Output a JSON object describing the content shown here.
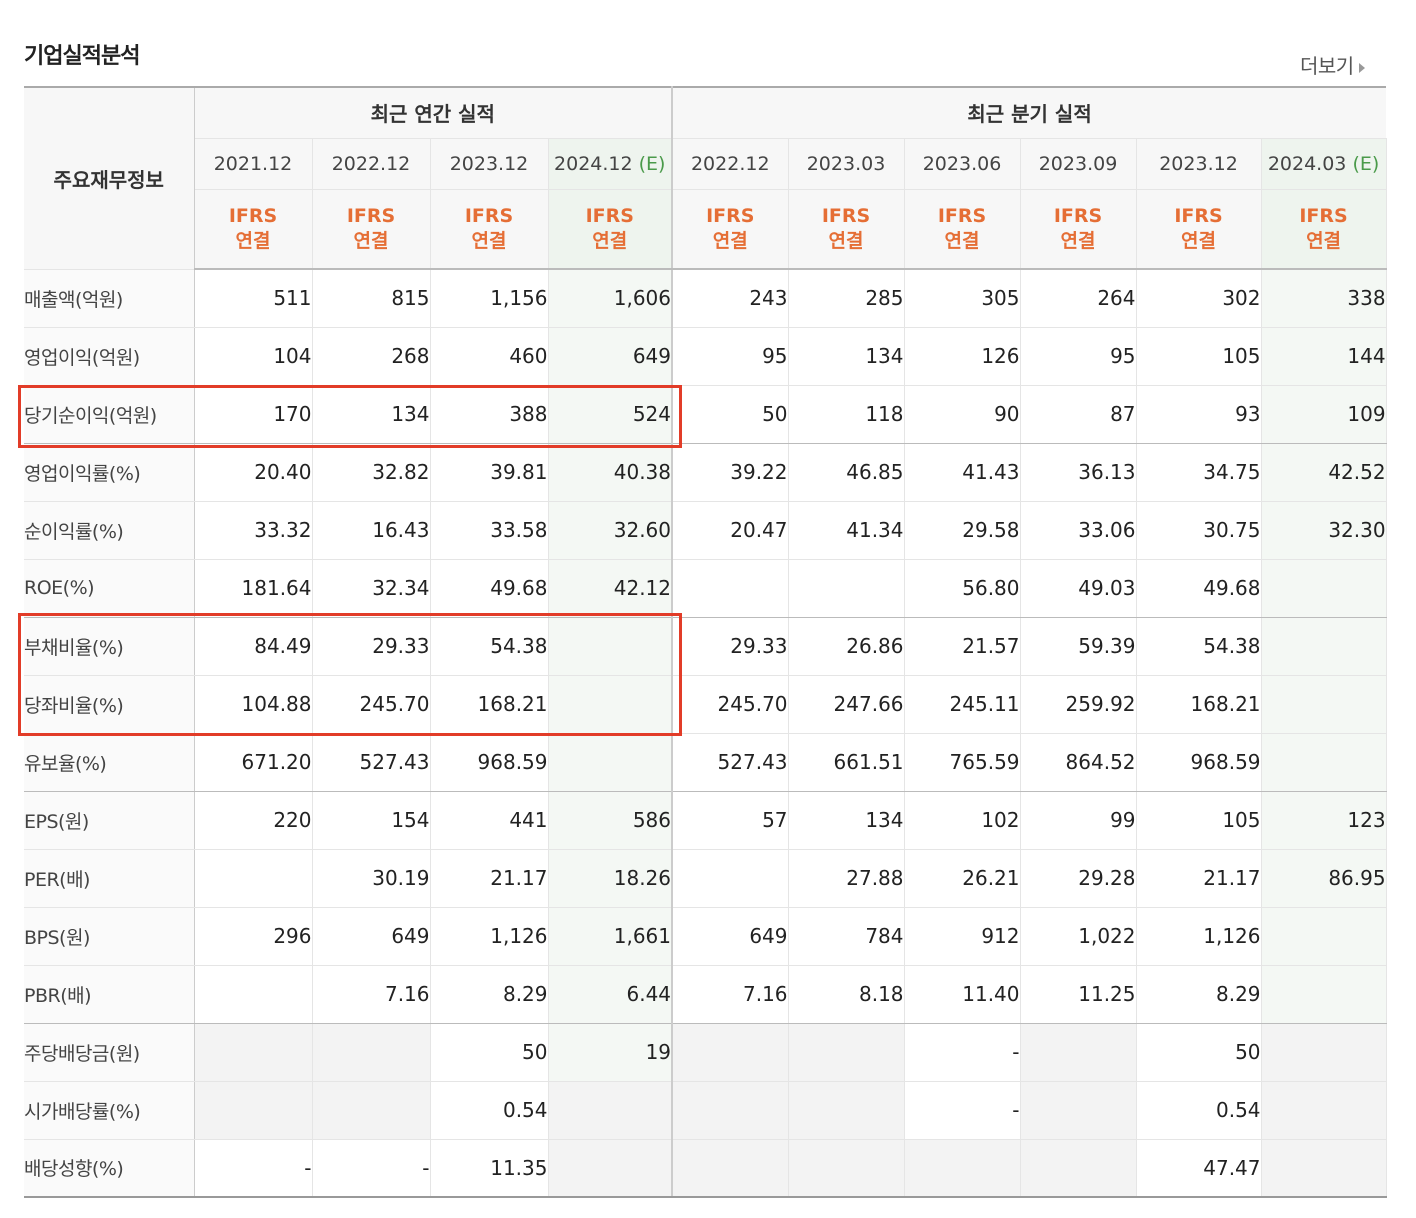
{
  "page": {
    "title": "기업실적분석",
    "more_label": "더보기"
  },
  "table": {
    "corner_label": "주요재무정보",
    "annual_header": "최근 연간 실적",
    "quarter_header": "최근 분기 실적",
    "estimate_mark": "(E)",
    "annual_periods": [
      {
        "label": "2021.12",
        "std1": "IFRS",
        "std2": "연결"
      },
      {
        "label": "2022.12",
        "std1": "IFRS",
        "std2": "연결"
      },
      {
        "label": "2023.12",
        "std1": "IFRS",
        "std2": "연결"
      },
      {
        "label": "2024.12",
        "std1": "IFRS",
        "std2": "연결"
      }
    ],
    "quarter_periods": [
      {
        "label": "2022.12",
        "std1": "IFRS",
        "std2": "연결"
      },
      {
        "label": "2023.03",
        "std1": "IFRS",
        "std2": "연결"
      },
      {
        "label": "2023.06",
        "std1": "IFRS",
        "std2": "연결"
      },
      {
        "label": "2023.09",
        "std1": "IFRS",
        "std2": "연결"
      },
      {
        "label": "2023.12",
        "std1": "IFRS",
        "std2": "연결"
      },
      {
        "label": "2024.03",
        "std1": "IFRS",
        "std2": "연결"
      }
    ],
    "rows": [
      {
        "label": "매출액(억원)",
        "values": [
          "511",
          "815",
          "1,156",
          "1,606",
          "243",
          "285",
          "305",
          "264",
          "302",
          "338"
        ]
      },
      {
        "label": "영업이익(억원)",
        "values": [
          "104",
          "268",
          "460",
          "649",
          "95",
          "134",
          "126",
          "95",
          "105",
          "144"
        ]
      },
      {
        "label": "당기순이익(억원)",
        "values": [
          "170",
          "134",
          "388",
          "524",
          "50",
          "118",
          "90",
          "87",
          "93",
          "109"
        ]
      },
      {
        "label": "영업이익률(%)",
        "values": [
          "20.40",
          "32.82",
          "39.81",
          "40.38",
          "39.22",
          "46.85",
          "41.43",
          "36.13",
          "34.75",
          "42.52"
        ]
      },
      {
        "label": "순이익률(%)",
        "values": [
          "33.32",
          "16.43",
          "33.58",
          "32.60",
          "20.47",
          "41.34",
          "29.58",
          "33.06",
          "30.75",
          "32.30"
        ]
      },
      {
        "label": "ROE(%)",
        "values": [
          "181.64",
          "32.34",
          "49.68",
          "42.12",
          "",
          "",
          "56.80",
          "49.03",
          "49.68",
          ""
        ]
      },
      {
        "label": "부채비율(%)",
        "values": [
          "84.49",
          "29.33",
          "54.38",
          "",
          "29.33",
          "26.86",
          "21.57",
          "59.39",
          "54.38",
          ""
        ]
      },
      {
        "label": "당좌비율(%)",
        "values": [
          "104.88",
          "245.70",
          "168.21",
          "",
          "245.70",
          "247.66",
          "245.11",
          "259.92",
          "168.21",
          ""
        ]
      },
      {
        "label": "유보율(%)",
        "values": [
          "671.20",
          "527.43",
          "968.59",
          "",
          "527.43",
          "661.51",
          "765.59",
          "864.52",
          "968.59",
          ""
        ]
      },
      {
        "label": "EPS(원)",
        "values": [
          "220",
          "154",
          "441",
          "586",
          "57",
          "134",
          "102",
          "99",
          "105",
          "123"
        ]
      },
      {
        "label": "PER(배)",
        "values": [
          "",
          "30.19",
          "21.17",
          "18.26",
          "",
          "27.88",
          "26.21",
          "29.28",
          "21.17",
          "86.95"
        ]
      },
      {
        "label": "BPS(원)",
        "values": [
          "296",
          "649",
          "1,126",
          "1,661",
          "649",
          "784",
          "912",
          "1,022",
          "1,126",
          ""
        ]
      },
      {
        "label": "PBR(배)",
        "values": [
          "",
          "7.16",
          "8.29",
          "6.44",
          "7.16",
          "8.18",
          "11.40",
          "11.25",
          "8.29",
          ""
        ]
      },
      {
        "label": "주당배당금(원)",
        "values": [
          "",
          "",
          "50",
          "19",
          "",
          "",
          "-",
          "",
          "50",
          ""
        ]
      },
      {
        "label": "시가배당률(%)",
        "values": [
          "",
          "",
          "0.54",
          "",
          "",
          "",
          "-",
          "",
          "0.54",
          ""
        ]
      },
      {
        "label": "배당성향(%)",
        "values": [
          "-",
          "-",
          "11.35",
          "",
          "",
          "",
          "",
          "",
          "47.47",
          ""
        ]
      }
    ]
  },
  "colors": {
    "highlight_box": "#e23c28",
    "standard_text": "#e56e35",
    "estimate_mark": "#4a9a4a"
  }
}
